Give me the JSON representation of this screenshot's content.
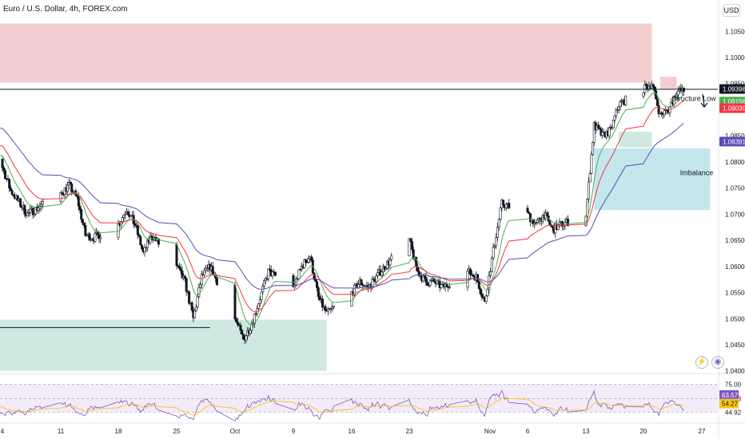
{
  "header": {
    "title": "Euro / U.S. Dollar, 4h, FOREX.com",
    "currency": "USD"
  },
  "icons": [
    "lightning-icon",
    "tradingview-logo-icon"
  ],
  "colors": {
    "up_candle": "#131722",
    "down_candle": "#131722",
    "ema_fast": "#4caf50",
    "ema_mid": "#f23645",
    "ema_slow": "#5b4bb7",
    "supply_zone": "#f2c4c9",
    "demand_zone": "#c6e5dd",
    "imbalance_zone": "#b9e3ea",
    "rsi_line": "#7e57c2",
    "rsi_ma": "#f5c518"
  },
  "chart_data": {
    "type": "candlestick",
    "title": "Euro / U.S. Dollar, 4h, FOREX.com",
    "y_axis": {
      "ticks": [
        "1.10500",
        "1.10000",
        "1.09500",
        "1.09000",
        "1.08500",
        "1.08000",
        "1.07500",
        "1.07000",
        "1.06500",
        "1.06000",
        "1.05500",
        "1.05000",
        "1.04500",
        "1.04000"
      ],
      "range": [
        1.0395,
        1.111
      ]
    },
    "x_axis": {
      "ticks": [
        "4",
        "11",
        "18",
        "25",
        "Oct",
        "9",
        "16",
        "23",
        "Nov",
        "6",
        "13",
        "20",
        "27"
      ]
    },
    "price_labels": [
      {
        "value": "1.09396",
        "type": "last"
      },
      {
        "value": "1.09156",
        "type": "ema_fast"
      },
      {
        "value": "1.09030",
        "type": "ema_mid"
      },
      {
        "value": "1.08391",
        "type": "ema_slow"
      }
    ],
    "price_path": [
      {
        "x": "Aug 31",
        "y": 1.08
      },
      {
        "x": "Sep 1",
        "y": 1.0815
      },
      {
        "x": "Sep 4",
        "y": 1.079
      },
      {
        "x": "Sep 5",
        "y": 1.0745
      },
      {
        "x": "Sep 7",
        "y": 1.07
      },
      {
        "x": "Sep 8",
        "y": 1.071
      },
      {
        "x": "Sep 11",
        "y": 1.074
      },
      {
        "x": "Sep 12",
        "y": 1.0755
      },
      {
        "x": "Sep 13",
        "y": 1.073
      },
      {
        "x": "Sep 14",
        "y": 1.066
      },
      {
        "x": "Sep 15",
        "y": 1.0655
      },
      {
        "x": "Sep 18",
        "y": 1.068
      },
      {
        "x": "Sep 19",
        "y": 1.071
      },
      {
        "x": "Sep 20",
        "y": 1.068
      },
      {
        "x": "Sep 21",
        "y": 1.0625
      },
      {
        "x": "Sep 22",
        "y": 1.066
      },
      {
        "x": "Sep 25",
        "y": 1.06
      },
      {
        "x": "Sep 26",
        "y": 1.057
      },
      {
        "x": "Sep 27",
        "y": 1.05
      },
      {
        "x": "Sep 28",
        "y": 1.058
      },
      {
        "x": "Sep 29",
        "y": 1.06
      },
      {
        "x": "Oct 2",
        "y": 1.05
      },
      {
        "x": "Oct 3",
        "y": 1.046
      },
      {
        "x": "Oct 4",
        "y": 1.049
      },
      {
        "x": "Oct 5",
        "y": 1.054
      },
      {
        "x": "Oct 6",
        "y": 1.059
      },
      {
        "x": "Oct 9",
        "y": 1.056
      },
      {
        "x": "Oct 10",
        "y": 1.06
      },
      {
        "x": "Oct 11",
        "y": 1.062
      },
      {
        "x": "Oct 12",
        "y": 1.054
      },
      {
        "x": "Oct 13",
        "y": 1.051
      },
      {
        "x": "Oct 16",
        "y": 1.055
      },
      {
        "x": "Oct 17",
        "y": 1.057
      },
      {
        "x": "Oct 18",
        "y": 1.056
      },
      {
        "x": "Oct 19",
        "y": 1.058
      },
      {
        "x": "Oct 20",
        "y": 1.06
      },
      {
        "x": "Oct 23",
        "y": 1.065
      },
      {
        "x": "Oct 24",
        "y": 1.059
      },
      {
        "x": "Oct 25",
        "y": 1.057
      },
      {
        "x": "Oct 26",
        "y": 1.057
      },
      {
        "x": "Oct 27",
        "y": 1.056
      },
      {
        "x": "Oct 30",
        "y": 1.059
      },
      {
        "x": "Oct 31",
        "y": 1.058
      },
      {
        "x": "Nov 1",
        "y": 1.053
      },
      {
        "x": "Nov 2",
        "y": 1.063
      },
      {
        "x": "Nov 3",
        "y": 1.072
      },
      {
        "x": "Nov 6",
        "y": 1.07
      },
      {
        "x": "Nov 7",
        "y": 1.068
      },
      {
        "x": "Nov 8",
        "y": 1.07
      },
      {
        "x": "Nov 9",
        "y": 1.067
      },
      {
        "x": "Nov 10",
        "y": 1.068
      },
      {
        "x": "Nov 13",
        "y": 1.07
      },
      {
        "x": "Nov 14",
        "y": 1.087
      },
      {
        "x": "Nov 15",
        "y": 1.085
      },
      {
        "x": "Nov 16",
        "y": 1.086
      },
      {
        "x": "Nov 17",
        "y": 1.091
      },
      {
        "x": "Nov 20",
        "y": 1.094
      },
      {
        "x": "Nov 21",
        "y": 1.095
      },
      {
        "x": "Nov 22",
        "y": 1.089
      },
      {
        "x": "Nov 23",
        "y": 1.09
      },
      {
        "x": "Nov 24",
        "y": 1.0935
      },
      {
        "x": "Nov 27",
        "y": 1.094
      }
    ],
    "zones": [
      {
        "name": "supply",
        "x_from": "Aug 31",
        "x_to": "Nov 21",
        "y_from": 1.0952,
        "y_to": 1.1065
      },
      {
        "name": "supply-small",
        "x_from": "Nov 22",
        "x_to": "Nov 24",
        "y_from": 1.094,
        "y_to": 1.0963
      },
      {
        "name": "demand",
        "x_from": "Aug 31",
        "x_to": "Oct 13",
        "y_from": 1.04,
        "y_to": 1.0498
      },
      {
        "name": "demand-small",
        "x_from": "Nov 17",
        "x_to": "Nov 21",
        "y_from": 1.0828,
        "y_to": 1.0858
      },
      {
        "name": "imbalance",
        "x_from": "Nov 14",
        "x_to": "Nov 28",
        "y_from": 1.0708,
        "y_to": 1.0826
      }
    ],
    "annotations": [
      {
        "text": "Structure Low",
        "x": "Nov 23",
        "y": 1.0917
      },
      {
        "text": "Imbalance",
        "x": "Nov 24",
        "y": 1.0775
      }
    ],
    "lines": [
      {
        "name": "structure-low-line",
        "y": 1.0939
      },
      {
        "name": "demand-line",
        "x_from": "Aug 31",
        "x_to": "Sep 29",
        "y": 1.0483
      }
    ],
    "rsi": {
      "ticks": [
        "75.00",
        "59.73",
        "44.92"
      ],
      "labels": [
        "63.57",
        "54.27"
      ]
    }
  }
}
